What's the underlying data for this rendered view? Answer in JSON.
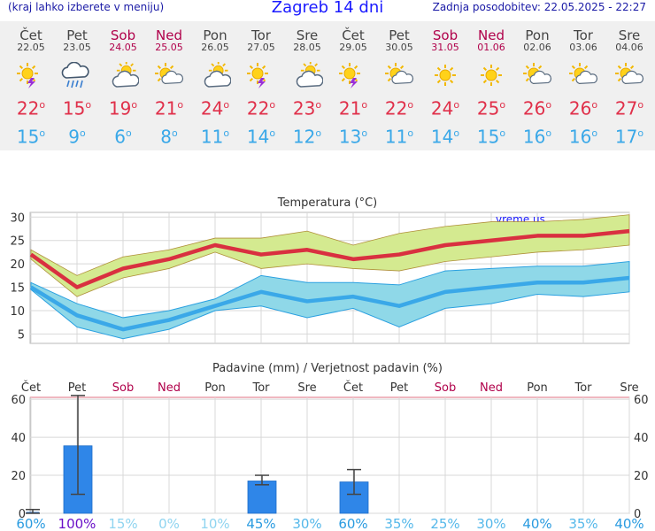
{
  "header": {
    "left_note": "(kraj lahko izberete v meniju)",
    "title": "Zagreb 14 dni",
    "updated": "Zadnja posodobitev: 22.05.2025 - 22:27"
  },
  "days": [
    {
      "name": "Čet",
      "date": "22.05",
      "weekend": false,
      "icon": "thunderstorm-sun-icon",
      "max": "22",
      "min": "15"
    },
    {
      "name": "Pet",
      "date": "23.05",
      "weekend": false,
      "icon": "rain-cloud-icon",
      "max": "15",
      "min": "9"
    },
    {
      "name": "Sob",
      "date": "24.05",
      "weekend": true,
      "icon": "sun-behind-cloud-icon",
      "max": "19",
      "min": "6"
    },
    {
      "name": "Ned",
      "date": "25.05",
      "weekend": true,
      "icon": "partly-sunny-icon",
      "max": "21",
      "min": "8"
    },
    {
      "name": "Pon",
      "date": "26.05",
      "weekend": false,
      "icon": "sun-behind-cloud-icon",
      "max": "24",
      "min": "11"
    },
    {
      "name": "Tor",
      "date": "27.05",
      "weekend": false,
      "icon": "thunderstorm-sun-icon",
      "max": "22",
      "min": "14"
    },
    {
      "name": "Sre",
      "date": "28.05",
      "weekend": false,
      "icon": "sun-behind-cloud-icon",
      "max": "23",
      "min": "12"
    },
    {
      "name": "Čet",
      "date": "29.05",
      "weekend": false,
      "icon": "thunderstorm-sun-icon",
      "max": "21",
      "min": "13"
    },
    {
      "name": "Pet",
      "date": "30.05",
      "weekend": false,
      "icon": "partly-sunny-icon",
      "max": "22",
      "min": "11"
    },
    {
      "name": "Sob",
      "date": "31.05",
      "weekend": true,
      "icon": "sun-icon",
      "max": "24",
      "min": "14"
    },
    {
      "name": "Ned",
      "date": "01.06",
      "weekend": true,
      "icon": "sun-icon",
      "max": "25",
      "min": "15"
    },
    {
      "name": "Pon",
      "date": "02.06",
      "weekend": false,
      "icon": "partly-sunny-icon",
      "max": "26",
      "min": "16"
    },
    {
      "name": "Tor",
      "date": "03.06",
      "weekend": false,
      "icon": "partly-sunny-icon",
      "max": "26",
      "min": "16"
    },
    {
      "name": "Sre",
      "date": "04.06",
      "weekend": false,
      "icon": "partly-sunny-icon",
      "max": "27",
      "min": "17"
    }
  ],
  "colors": {
    "max_line": "#d93040",
    "max_band": "#d4ea90",
    "min_line": "#3aa8e8",
    "min_band": "#8fd8e8",
    "bar": "#2f86e8",
    "weekend": "#b0004a"
  },
  "chart_data": [
    {
      "type": "line",
      "title": "Temperatura (°C)",
      "watermark": "vreme.us",
      "ylim": [
        3,
        31
      ],
      "yticks": [
        5,
        10,
        15,
        20,
        25,
        30
      ],
      "grid": true,
      "series": [
        {
          "values": [
            22,
            15,
            19,
            21,
            24,
            22,
            23,
            21,
            22,
            24,
            25,
            26,
            26,
            27
          ],
          "band_low": [
            21,
            13,
            17,
            19,
            22.5,
            19,
            20,
            19,
            18.5,
            20.5,
            21.5,
            22.5,
            23,
            24
          ],
          "band_high": [
            23,
            17.5,
            21.5,
            23,
            25.5,
            25.5,
            27,
            24,
            26.5,
            28,
            29,
            29,
            29.5,
            30.5
          ]
        },
        {
          "values": [
            15,
            9,
            6,
            8,
            11,
            14,
            12,
            13,
            11,
            14,
            15,
            16,
            16,
            17
          ],
          "band_low": [
            14.5,
            6.5,
            4,
            6,
            10,
            11,
            8.5,
            10.5,
            6.5,
            10.5,
            11.5,
            13.5,
            13,
            14
          ],
          "band_high": [
            16,
            11.5,
            8.5,
            10,
            12.5,
            17.5,
            16,
            16,
            15.5,
            18.5,
            19,
            19.5,
            19.5,
            20.5
          ]
        }
      ]
    },
    {
      "type": "bar",
      "title": "Padavine (mm) / Verjetnost padavin (%)",
      "categories": [
        "Čet",
        "Pet",
        "Sob",
        "Ned",
        "Pon",
        "Tor",
        "Sre",
        "Čet",
        "Pet",
        "Sob",
        "Ned",
        "Pon",
        "Tor",
        "Sre"
      ],
      "ylim": [
        0,
        61
      ],
      "yticks": [
        0,
        20,
        40,
        60
      ],
      "values": [
        0.5,
        35.5,
        0,
        0,
        0,
        17,
        0,
        16.5,
        0,
        0,
        0,
        0,
        0,
        0
      ],
      "err_low": [
        0,
        10,
        0,
        0,
        0,
        15,
        0,
        10,
        0,
        0,
        0,
        0,
        0,
        0
      ],
      "err_high": [
        2,
        62,
        0,
        0,
        0,
        20,
        0,
        23,
        0,
        0,
        0,
        0,
        0,
        0
      ],
      "probability": [
        "60%",
        "100%",
        "15%",
        "0%",
        "10%",
        "45%",
        "30%",
        "60%",
        "35%",
        "25%",
        "30%",
        "40%",
        "35%",
        "40%"
      ]
    }
  ]
}
